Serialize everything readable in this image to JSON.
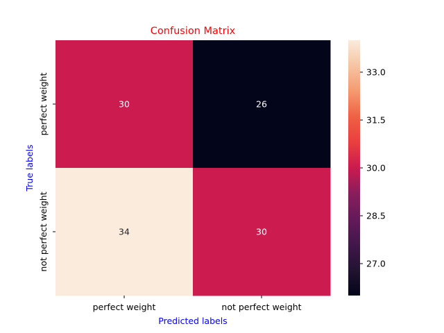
{
  "chart_data": {
    "type": "heatmap",
    "title": "Confusion Matrix",
    "xlabel": "Predicted labels",
    "ylabel": "True labels",
    "x_categories": [
      "perfect weight",
      "not perfect weight"
    ],
    "y_categories": [
      "perfect weight",
      "not perfect weight"
    ],
    "values": [
      [
        30,
        26
      ],
      [
        34,
        30
      ]
    ],
    "colorbar": {
      "range": [
        26,
        34
      ],
      "ticks": [
        "27.0",
        "28.5",
        "30.0",
        "31.5",
        "33.0"
      ],
      "tick_values": [
        27,
        28.5,
        30,
        31.5,
        33
      ]
    },
    "colormap": "rocket",
    "colors": {
      "title": "#ff0000",
      "axis_labels": "#0000ff",
      "cell_text_dark_bg": "#ffffff",
      "cell_text_light_bg": "#262626"
    }
  }
}
